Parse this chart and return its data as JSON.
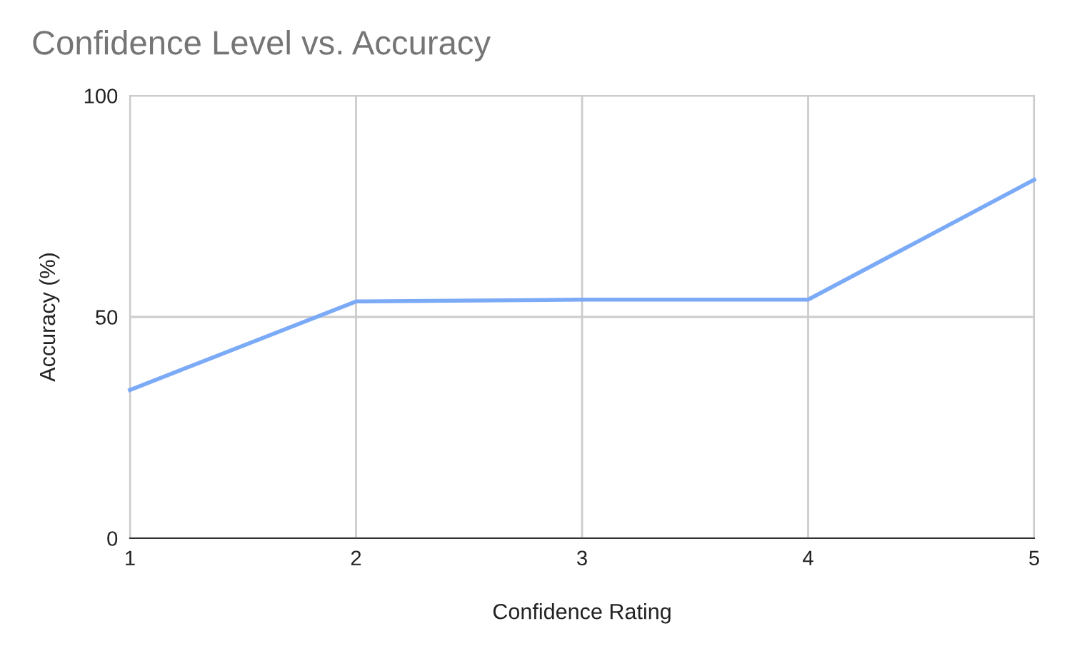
{
  "chart_data": {
    "type": "line",
    "title": "Confidence Level vs. Accuracy",
    "xlabel": "Confidence Rating",
    "ylabel": "Accuracy (%)",
    "x": [
      1,
      2,
      3,
      4,
      5
    ],
    "series": [
      {
        "color": "#7baaf7",
        "values": [
          33.5,
          53.5,
          53.9,
          53.9,
          81
        ]
      }
    ],
    "xlim": [
      1,
      5
    ],
    "xticks": [
      1,
      2,
      3,
      4,
      5
    ],
    "ylim": [
      0,
      100
    ],
    "yticks": [
      0,
      50,
      100
    ],
    "grid": true,
    "legend": false,
    "marker": "none",
    "line_style": "solid"
  }
}
